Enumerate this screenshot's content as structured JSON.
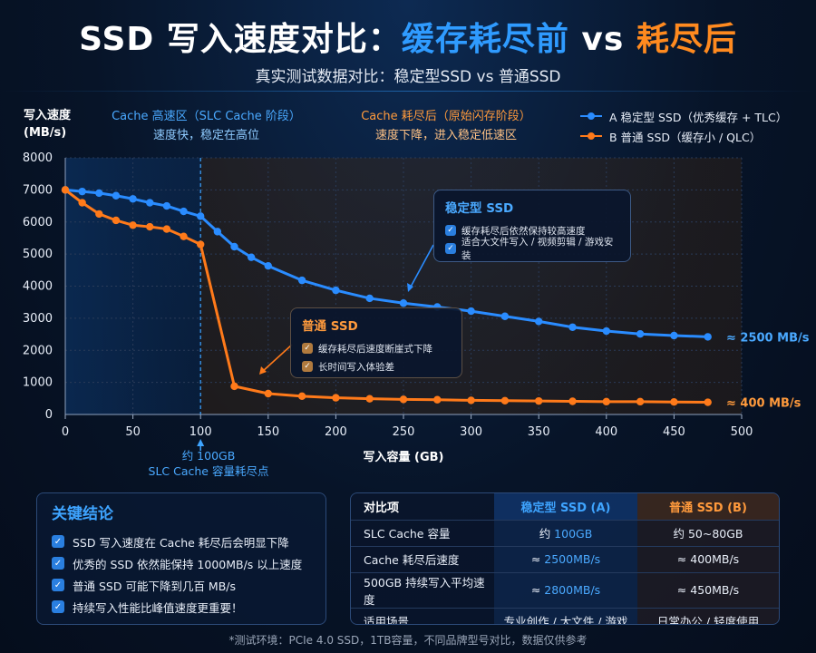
{
  "header": {
    "title_prefix": "SSD 写入速度对比：",
    "title_blue": "缓存耗尽前",
    "title_vs": " vs ",
    "title_orange": "耗尽后",
    "subtitle": "真实测试数据对比：稳定型SSD vs 普通SSD"
  },
  "zones": {
    "a_line1": "Cache 高速区（SLC Cache 阶段）",
    "a_line2": "速度快，稳定在高位",
    "b_line1": "Cache 耗尽后（原始闪存阶段）",
    "b_line2": "速度下降，进入稳定低速区"
  },
  "legend": {
    "a": "A  稳定型 SSD（优秀缓存 + TLC）",
    "b": "B  普通 SSD（缓存小 / QLC）"
  },
  "callouts": {
    "a_title": "稳定型 SSD",
    "a_items": [
      "缓存耗尽后依然保持较高速度",
      "适合大文件写入 / 视频剪辑 / 游戏安装"
    ],
    "b_title": "普通 SSD",
    "b_items": [
      "缓存耗尽后速度断崖式下降",
      "长时间写入体验差"
    ]
  },
  "cache_note": {
    "line1": "约 100GB",
    "line2": "SLC Cache 容量耗尽点"
  },
  "chart_data": {
    "type": "line",
    "ylabel_line1": "写入速度",
    "ylabel_line2": "(MB/s)",
    "xlabel": "写入容量 (GB)",
    "xlim": [
      0,
      500
    ],
    "ylim": [
      0,
      8000
    ],
    "xticks": [
      0,
      50,
      100,
      150,
      200,
      250,
      300,
      350,
      400,
      450,
      500
    ],
    "yticks": [
      0,
      1000,
      2000,
      3000,
      4000,
      5000,
      6000,
      7000,
      8000
    ],
    "grid": true,
    "legend_position": "top-right",
    "cache_boundary_x": 100,
    "series": [
      {
        "name": "A  稳定型 SSD（优秀缓存 + TLC）",
        "color": "#2a8cff",
        "end_label": "≈ 2500 MB/s",
        "x": [
          0,
          12.5,
          25,
          37.5,
          50,
          62.5,
          75,
          87.5,
          100,
          112.5,
          125,
          137.5,
          150,
          175,
          200,
          225,
          250,
          275,
          300,
          325,
          350,
          375,
          400,
          425,
          450,
          475
        ],
        "y": [
          7000,
          6950,
          6900,
          6820,
          6720,
          6600,
          6500,
          6330,
          6180,
          5700,
          5230,
          4900,
          4630,
          4180,
          3870,
          3620,
          3470,
          3350,
          3220,
          3060,
          2900,
          2720,
          2600,
          2510,
          2460,
          2420
        ]
      },
      {
        "name": "B  普通 SSD（缓存小 / QLC）",
        "color": "#ff7a1a",
        "end_label": "≈ 400 MB/s",
        "x": [
          0,
          12.5,
          25,
          37.5,
          50,
          62.5,
          75,
          87.5,
          100,
          125,
          150,
          175,
          200,
          225,
          250,
          275,
          300,
          325,
          350,
          375,
          400,
          425,
          450,
          475
        ],
        "y": [
          7000,
          6600,
          6250,
          6050,
          5900,
          5850,
          5780,
          5550,
          5300,
          880,
          650,
          570,
          520,
          490,
          470,
          460,
          440,
          430,
          420,
          410,
          400,
          400,
          390,
          380
        ]
      }
    ]
  },
  "conclusions": {
    "title": "关键结论",
    "items": [
      "SSD 写入速度在 Cache 耗尽后会明显下降",
      "优秀的 SSD 依然能保持 1000MB/s 以上速度",
      "普通 SSD 可能下降到几百 MB/s",
      "持续写入性能比峰值速度更重要！"
    ]
  },
  "table": {
    "headers": [
      "对比项",
      "稳定型 SSD (A)",
      "普通 SSD (B)"
    ],
    "rows": [
      {
        "label": "SLC Cache 容量",
        "a_pre": "约 ",
        "a_val": "100GB",
        "b": "约 50~80GB"
      },
      {
        "label": "Cache 耗尽后速度",
        "a_pre": "≈ ",
        "a_val": "2500MB/s",
        "b": "≈ 400MB/s"
      },
      {
        "label": "500GB 持续写入平均速度",
        "a_pre": "≈ ",
        "a_val": "2800MB/s",
        "b": "≈ 450MB/s"
      },
      {
        "label": "适用场景",
        "a_pre": "",
        "a_val": "专业创作 / 大文件 / 游戏",
        "b": "日常办公 / 轻度使用"
      }
    ]
  },
  "footer": "*测试环境：PCIe 4.0 SSD，1TB容量，不同品牌型号对比，数据仅供参考"
}
